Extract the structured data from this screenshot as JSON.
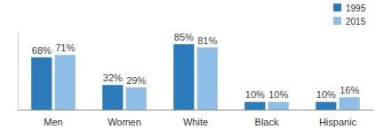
{
  "chart_data": {
    "type": "bar",
    "categories": [
      "Men",
      "Women",
      "White",
      "Black",
      "Hispanic"
    ],
    "series": [
      {
        "name": "1995",
        "color": "#2b7bba",
        "values": [
          68,
          32,
          85,
          10,
          10
        ],
        "value_labels": [
          "68%",
          "32%",
          "85%",
          "10%",
          "10%"
        ]
      },
      {
        "name": "2015",
        "color": "#8ebde6",
        "values": [
          71,
          29,
          81,
          10,
          16
        ],
        "value_labels": [
          "71%",
          "29%",
          "81%",
          "10%",
          "16%"
        ]
      }
    ],
    "ylim": [
      0,
      100
    ],
    "data_labels": true,
    "tick_labels": "x",
    "legend": "top-right",
    "grid": false
  }
}
